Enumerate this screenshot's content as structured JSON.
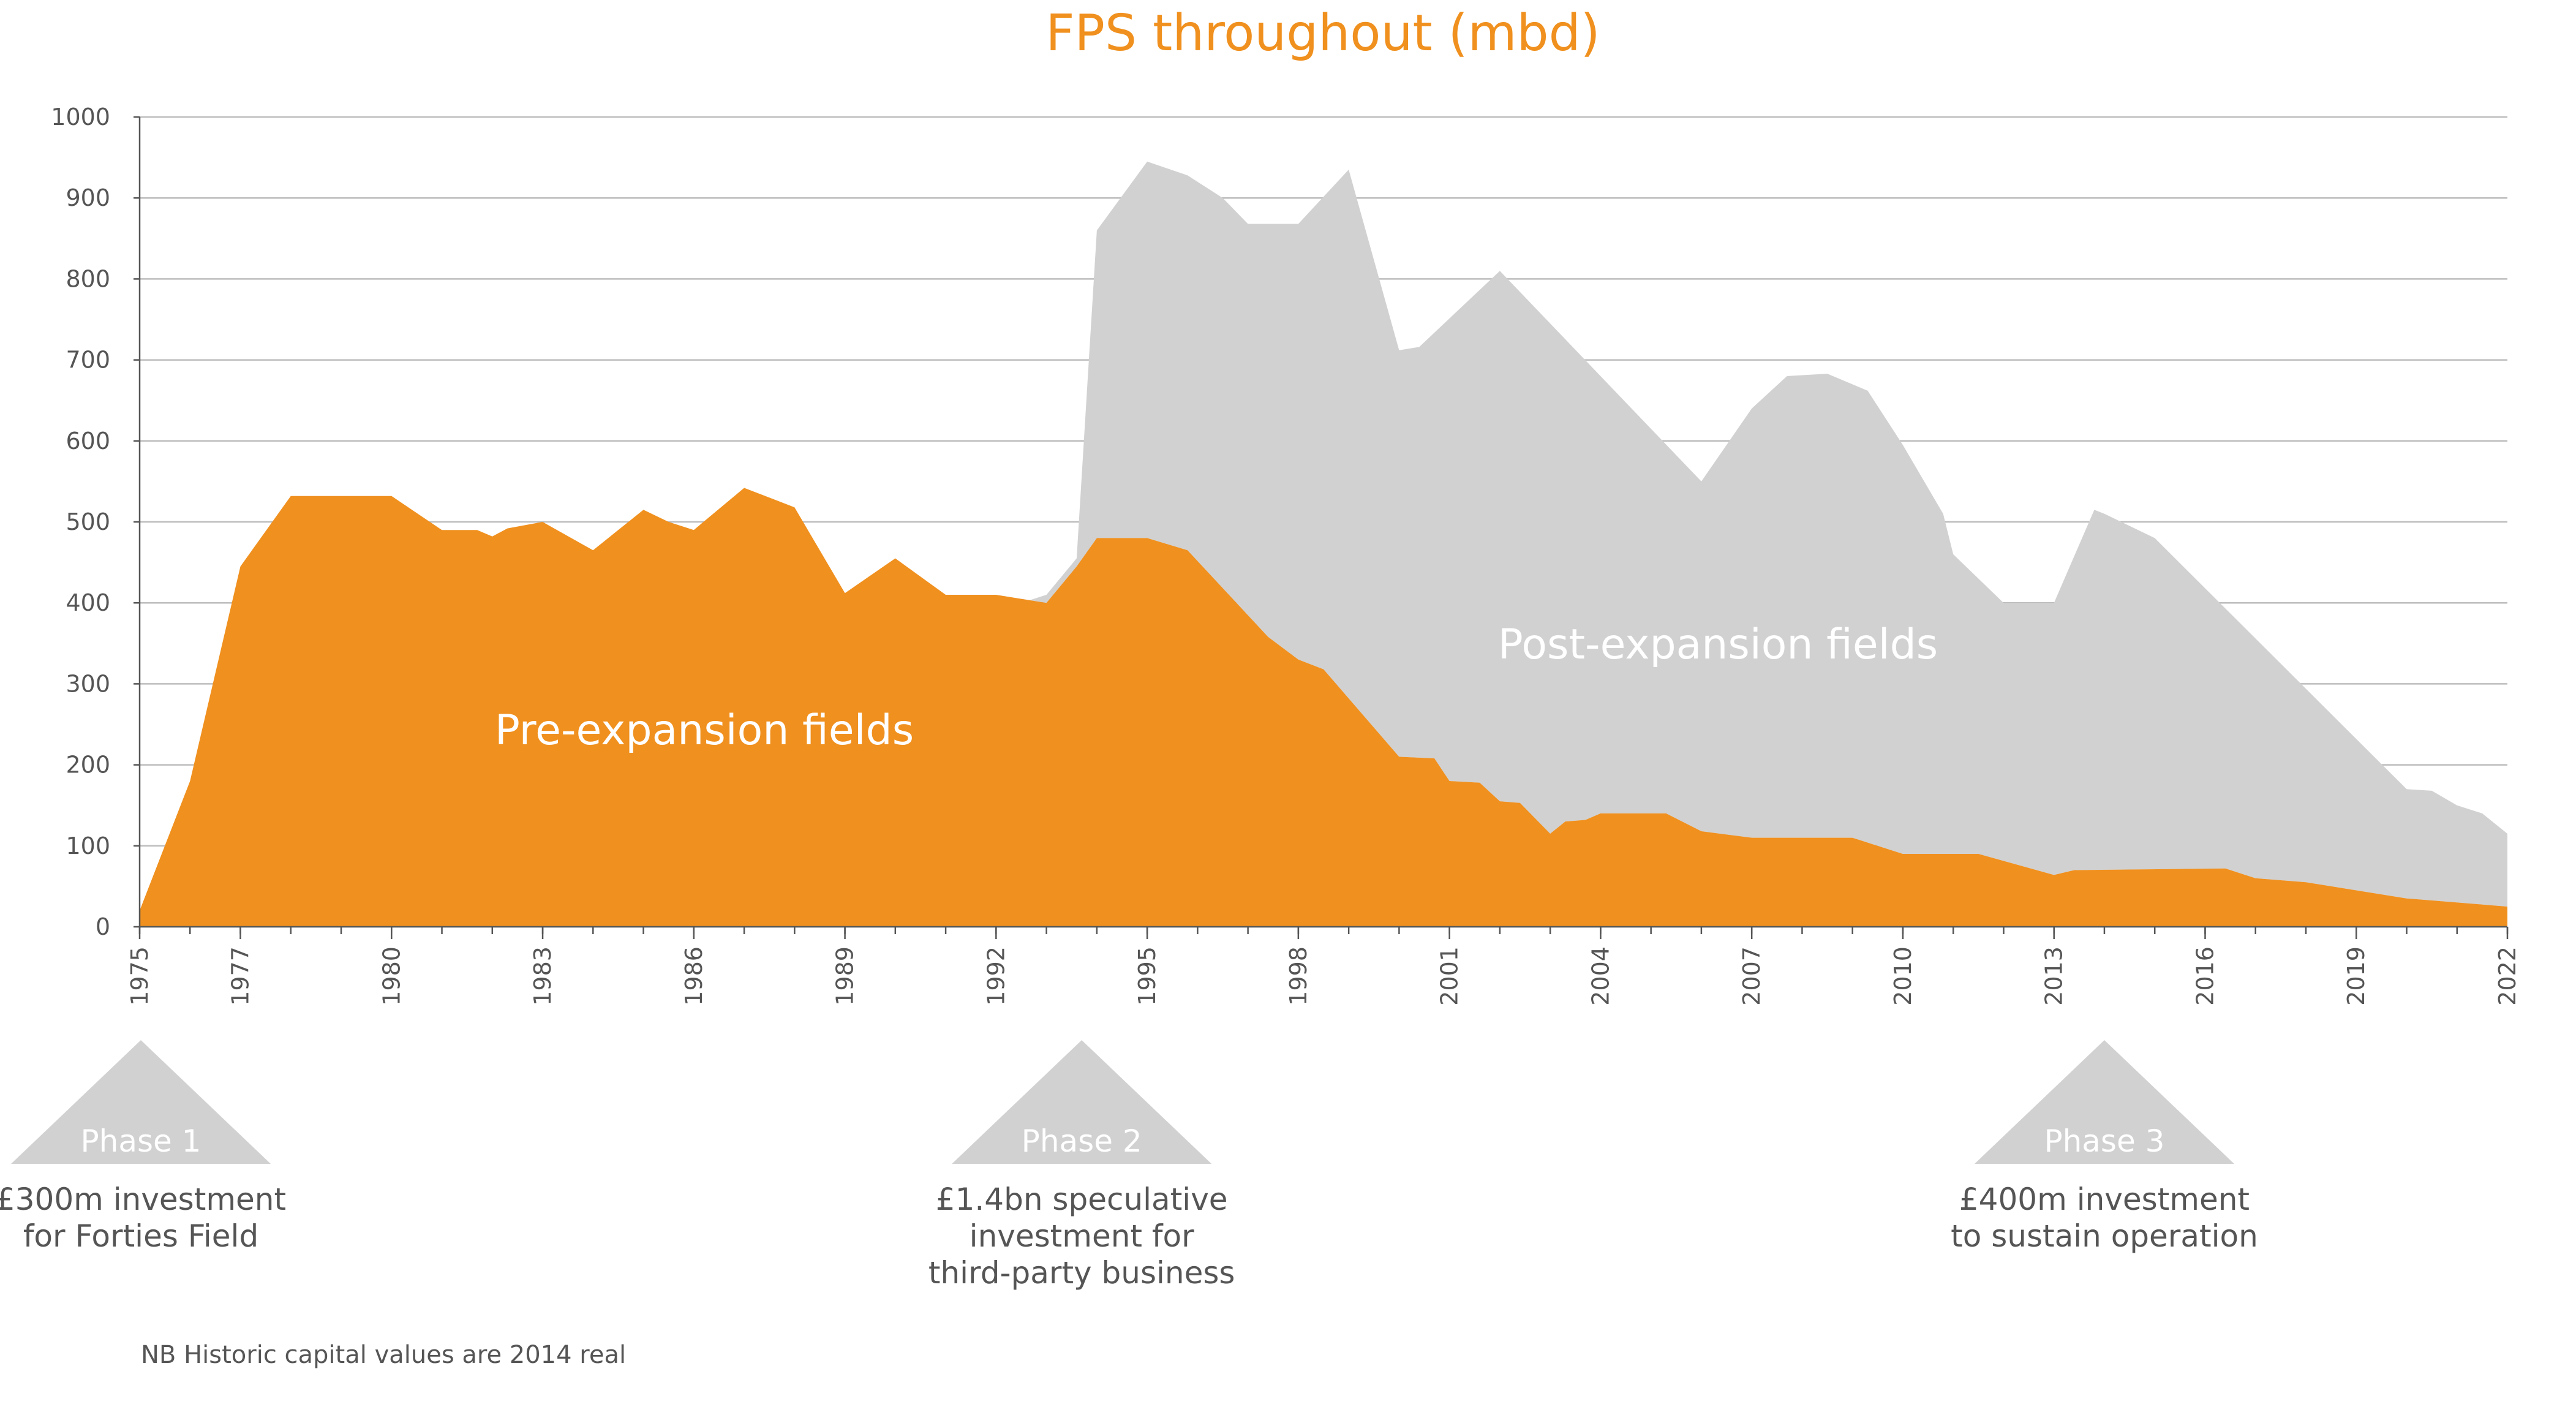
{
  "chart_data": {
    "type": "area",
    "title": "FPS throughout (mbd)",
    "xlabel": "",
    "ylabel": "",
    "xlim": [
      1975,
      2022
    ],
    "ylim": [
      0,
      1000
    ],
    "yticks": [
      0,
      100,
      200,
      300,
      400,
      500,
      600,
      700,
      800,
      900,
      1000
    ],
    "xticks": [
      1975,
      1977,
      1980,
      1983,
      1986,
      1989,
      1992,
      1995,
      1998,
      2001,
      2004,
      2007,
      2010,
      2013,
      2016,
      2019,
      2022
    ],
    "grid": "horizontal",
    "stacked": true,
    "series": [
      {
        "name": "Pre-expansion fields",
        "color": "#f0901e",
        "points": [
          [
            1975,
            20
          ],
          [
            1976,
            180
          ],
          [
            1977,
            445
          ],
          [
            1978,
            532
          ],
          [
            1979,
            532
          ],
          [
            1980,
            532
          ],
          [
            1981,
            490
          ],
          [
            1981.7,
            490
          ],
          [
            1982,
            482
          ],
          [
            1982.3,
            492
          ],
          [
            1983,
            500
          ],
          [
            1984,
            465
          ],
          [
            1985,
            515
          ],
          [
            1985.5,
            500
          ],
          [
            1986,
            490
          ],
          [
            1987,
            542
          ],
          [
            1988,
            518
          ],
          [
            1989,
            412
          ],
          [
            1990,
            455
          ],
          [
            1991,
            410
          ],
          [
            1992,
            410
          ],
          [
            1993,
            400
          ],
          [
            1993.6,
            445
          ],
          [
            1994,
            480
          ],
          [
            1995,
            480
          ],
          [
            1995.8,
            465
          ],
          [
            1997.4,
            358
          ],
          [
            1998,
            330
          ],
          [
            1998.5,
            318
          ],
          [
            2000,
            210
          ],
          [
            2000.7,
            208
          ],
          [
            2001,
            180
          ],
          [
            2001.6,
            178
          ],
          [
            2002,
            155
          ],
          [
            2002.4,
            153
          ],
          [
            2003,
            115
          ],
          [
            2003.3,
            130
          ],
          [
            2003.7,
            132
          ],
          [
            2004,
            140
          ],
          [
            2005.3,
            140
          ],
          [
            2006,
            118
          ],
          [
            2007,
            110
          ],
          [
            2009,
            110
          ],
          [
            2010,
            90
          ],
          [
            2011.5,
            90
          ],
          [
            2013,
            64
          ],
          [
            2013.4,
            70
          ],
          [
            2016.4,
            72
          ],
          [
            2017,
            60
          ],
          [
            2018,
            55
          ],
          [
            2020,
            35
          ],
          [
            2022,
            25
          ]
        ]
      },
      {
        "name": "Post-expansion fields",
        "color": "#d1d1d1",
        "total_points": [
          [
            1992.5,
            400
          ],
          [
            1993,
            410
          ],
          [
            1993.6,
            455
          ],
          [
            1994,
            860
          ],
          [
            1995,
            945
          ],
          [
            1995.8,
            928
          ],
          [
            1996.5,
            900
          ],
          [
            1997,
            868
          ],
          [
            1998,
            868
          ],
          [
            1999,
            935
          ],
          [
            2000,
            712
          ],
          [
            2000.4,
            716
          ],
          [
            2002,
            810
          ],
          [
            2006,
            550
          ],
          [
            2007,
            640
          ],
          [
            2007.7,
            680
          ],
          [
            2008.5,
            683
          ],
          [
            2009.3,
            662
          ],
          [
            2010,
            595
          ],
          [
            2010.8,
            510
          ],
          [
            2011,
            460
          ],
          [
            2012,
            400
          ],
          [
            2013,
            400
          ],
          [
            2013.8,
            515
          ],
          [
            2014,
            510
          ],
          [
            2015,
            480
          ],
          [
            2020,
            170
          ],
          [
            2020.5,
            168
          ],
          [
            2021,
            150
          ],
          [
            2021.5,
            140
          ],
          [
            2022,
            115
          ]
        ]
      }
    ],
    "annotations": {
      "pre_label": "Pre-expansion fields",
      "post_label": "Post-expansion fields"
    }
  },
  "phases": [
    {
      "label": "Phase 1",
      "year": 1975,
      "description": [
        "£300m investment",
        "for Forties Field"
      ]
    },
    {
      "label": "Phase 2",
      "year": 1993.7,
      "description": [
        "£1.4bn speculative",
        "investment for",
        "third-party business"
      ]
    },
    {
      "label": "Phase 3",
      "year": 2014,
      "description": [
        "£400m investment",
        "to sustain operation"
      ]
    }
  ],
  "note": "NB Historic capital values are 2014 real",
  "colors": {
    "orange": "#f0901e",
    "grey_area": "#d1d1d1",
    "phase_triangle": "#d1d1d1",
    "text": "#555555",
    "grid": "#bdbdbd"
  }
}
